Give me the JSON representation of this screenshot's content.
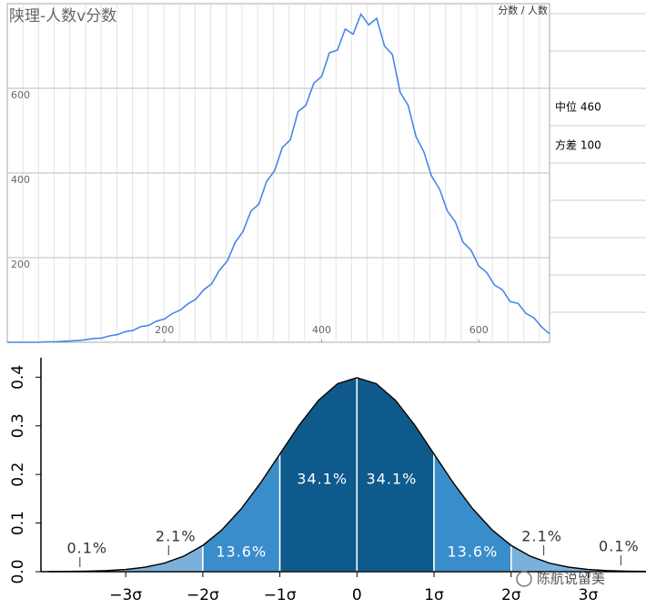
{
  "chart_data": [
    {
      "type": "line",
      "title": "陕理-人数v分数",
      "axis_label": "分数 / 人数",
      "side_cells": [
        "中位 460",
        "方差 100"
      ],
      "color": "#4a86e8",
      "xlim": [
        0,
        690
      ],
      "ylim": [
        0,
        800
      ],
      "xticks": [
        200,
        400,
        600
      ],
      "yticks": [
        200,
        400,
        600
      ],
      "grid": true,
      "x": [
        0,
        10,
        20,
        30,
        40,
        50,
        60,
        70,
        80,
        90,
        100,
        110,
        120,
        130,
        140,
        150,
        160,
        170,
        180,
        190,
        200,
        210,
        220,
        230,
        240,
        250,
        260,
        270,
        280,
        290,
        300,
        310,
        320,
        330,
        340,
        350,
        360,
        370,
        380,
        390,
        400,
        410,
        420,
        430,
        440,
        450,
        460,
        470,
        480,
        490,
        500,
        510,
        520,
        530,
        540,
        550,
        560,
        570,
        580,
        590,
        600,
        610,
        620,
        630,
        640,
        650,
        660,
        670,
        680,
        690
      ],
      "values": [
        0,
        0,
        0,
        0,
        0,
        1,
        1,
        2,
        3,
        4,
        6,
        9,
        10,
        15,
        18,
        25,
        28,
        37,
        40,
        50,
        55,
        68,
        76,
        91,
        102,
        124,
        138,
        170,
        192,
        236,
        262,
        310,
        326,
        380,
        405,
        460,
        478,
        545,
        560,
        612,
        628,
        684,
        690,
        740,
        728,
        775,
        750,
        765,
        700,
        680,
        590,
        560,
        486,
        450,
        392,
        362,
        310,
        285,
        236,
        218,
        180,
        165,
        135,
        124,
        96,
        92,
        68,
        58,
        36,
        20
      ]
    },
    {
      "type": "area",
      "color": "#000000",
      "xlim": [
        -4.1,
        3.75
      ],
      "ylim": [
        0,
        0.44
      ],
      "xticks": [
        {
          "value": -3,
          "label": "−3σ"
        },
        {
          "value": -2,
          "label": "−2σ"
        },
        {
          "value": -1,
          "label": "−1σ"
        },
        0,
        {
          "value": 1,
          "label": "1σ"
        },
        {
          "value": 2,
          "label": "2σ"
        },
        {
          "value": 3,
          "label": "3σ"
        }
      ],
      "yticks": [
        {
          "value": 0,
          "label": "0.0"
        },
        0.1,
        0.2,
        0.3,
        0.4
      ],
      "x": [
        -4,
        -3.75,
        -3.5,
        -3.25,
        -3,
        -2.75,
        -2.5,
        -2.25,
        -2,
        -1.75,
        -1.5,
        -1.25,
        -1,
        -0.75,
        -0.5,
        -0.25,
        0,
        0.25,
        0.5,
        0.75,
        1,
        1.25,
        1.5,
        1.75,
        2,
        2.25,
        2.5,
        2.75,
        3,
        3.25,
        3.5,
        3.75
      ],
      "values": [
        0.0001,
        0.0004,
        0.0009,
        0.002,
        0.0044,
        0.0091,
        0.0175,
        0.0317,
        0.054,
        0.0863,
        0.1295,
        0.1826,
        0.242,
        0.3011,
        0.3521,
        0.3867,
        0.3989,
        0.3867,
        0.3521,
        0.3011,
        0.242,
        0.1826,
        0.1295,
        0.0863,
        0.054,
        0.0317,
        0.0175,
        0.0091,
        0.0044,
        0.002,
        0.0009,
        0.0004
      ],
      "segments": [
        0.1,
        2.1,
        13.6,
        34.1,
        34.1,
        13.6,
        2.1,
        0.1
      ],
      "segment_labels": [
        "0.1%",
        "2.1%",
        "13.6%",
        "34.1%",
        "34.1%",
        "13.6%",
        "2.1%",
        "0.1%"
      ],
      "segment_colors": [
        "#b4d1e8",
        "#79b1dc",
        "#3a8dcb",
        "#0e5a8c",
        "#0e5a8c",
        "#3a8dcb",
        "#79b1dc",
        "#b4d1e8"
      ]
    }
  ],
  "watermark": "陈航说留美"
}
